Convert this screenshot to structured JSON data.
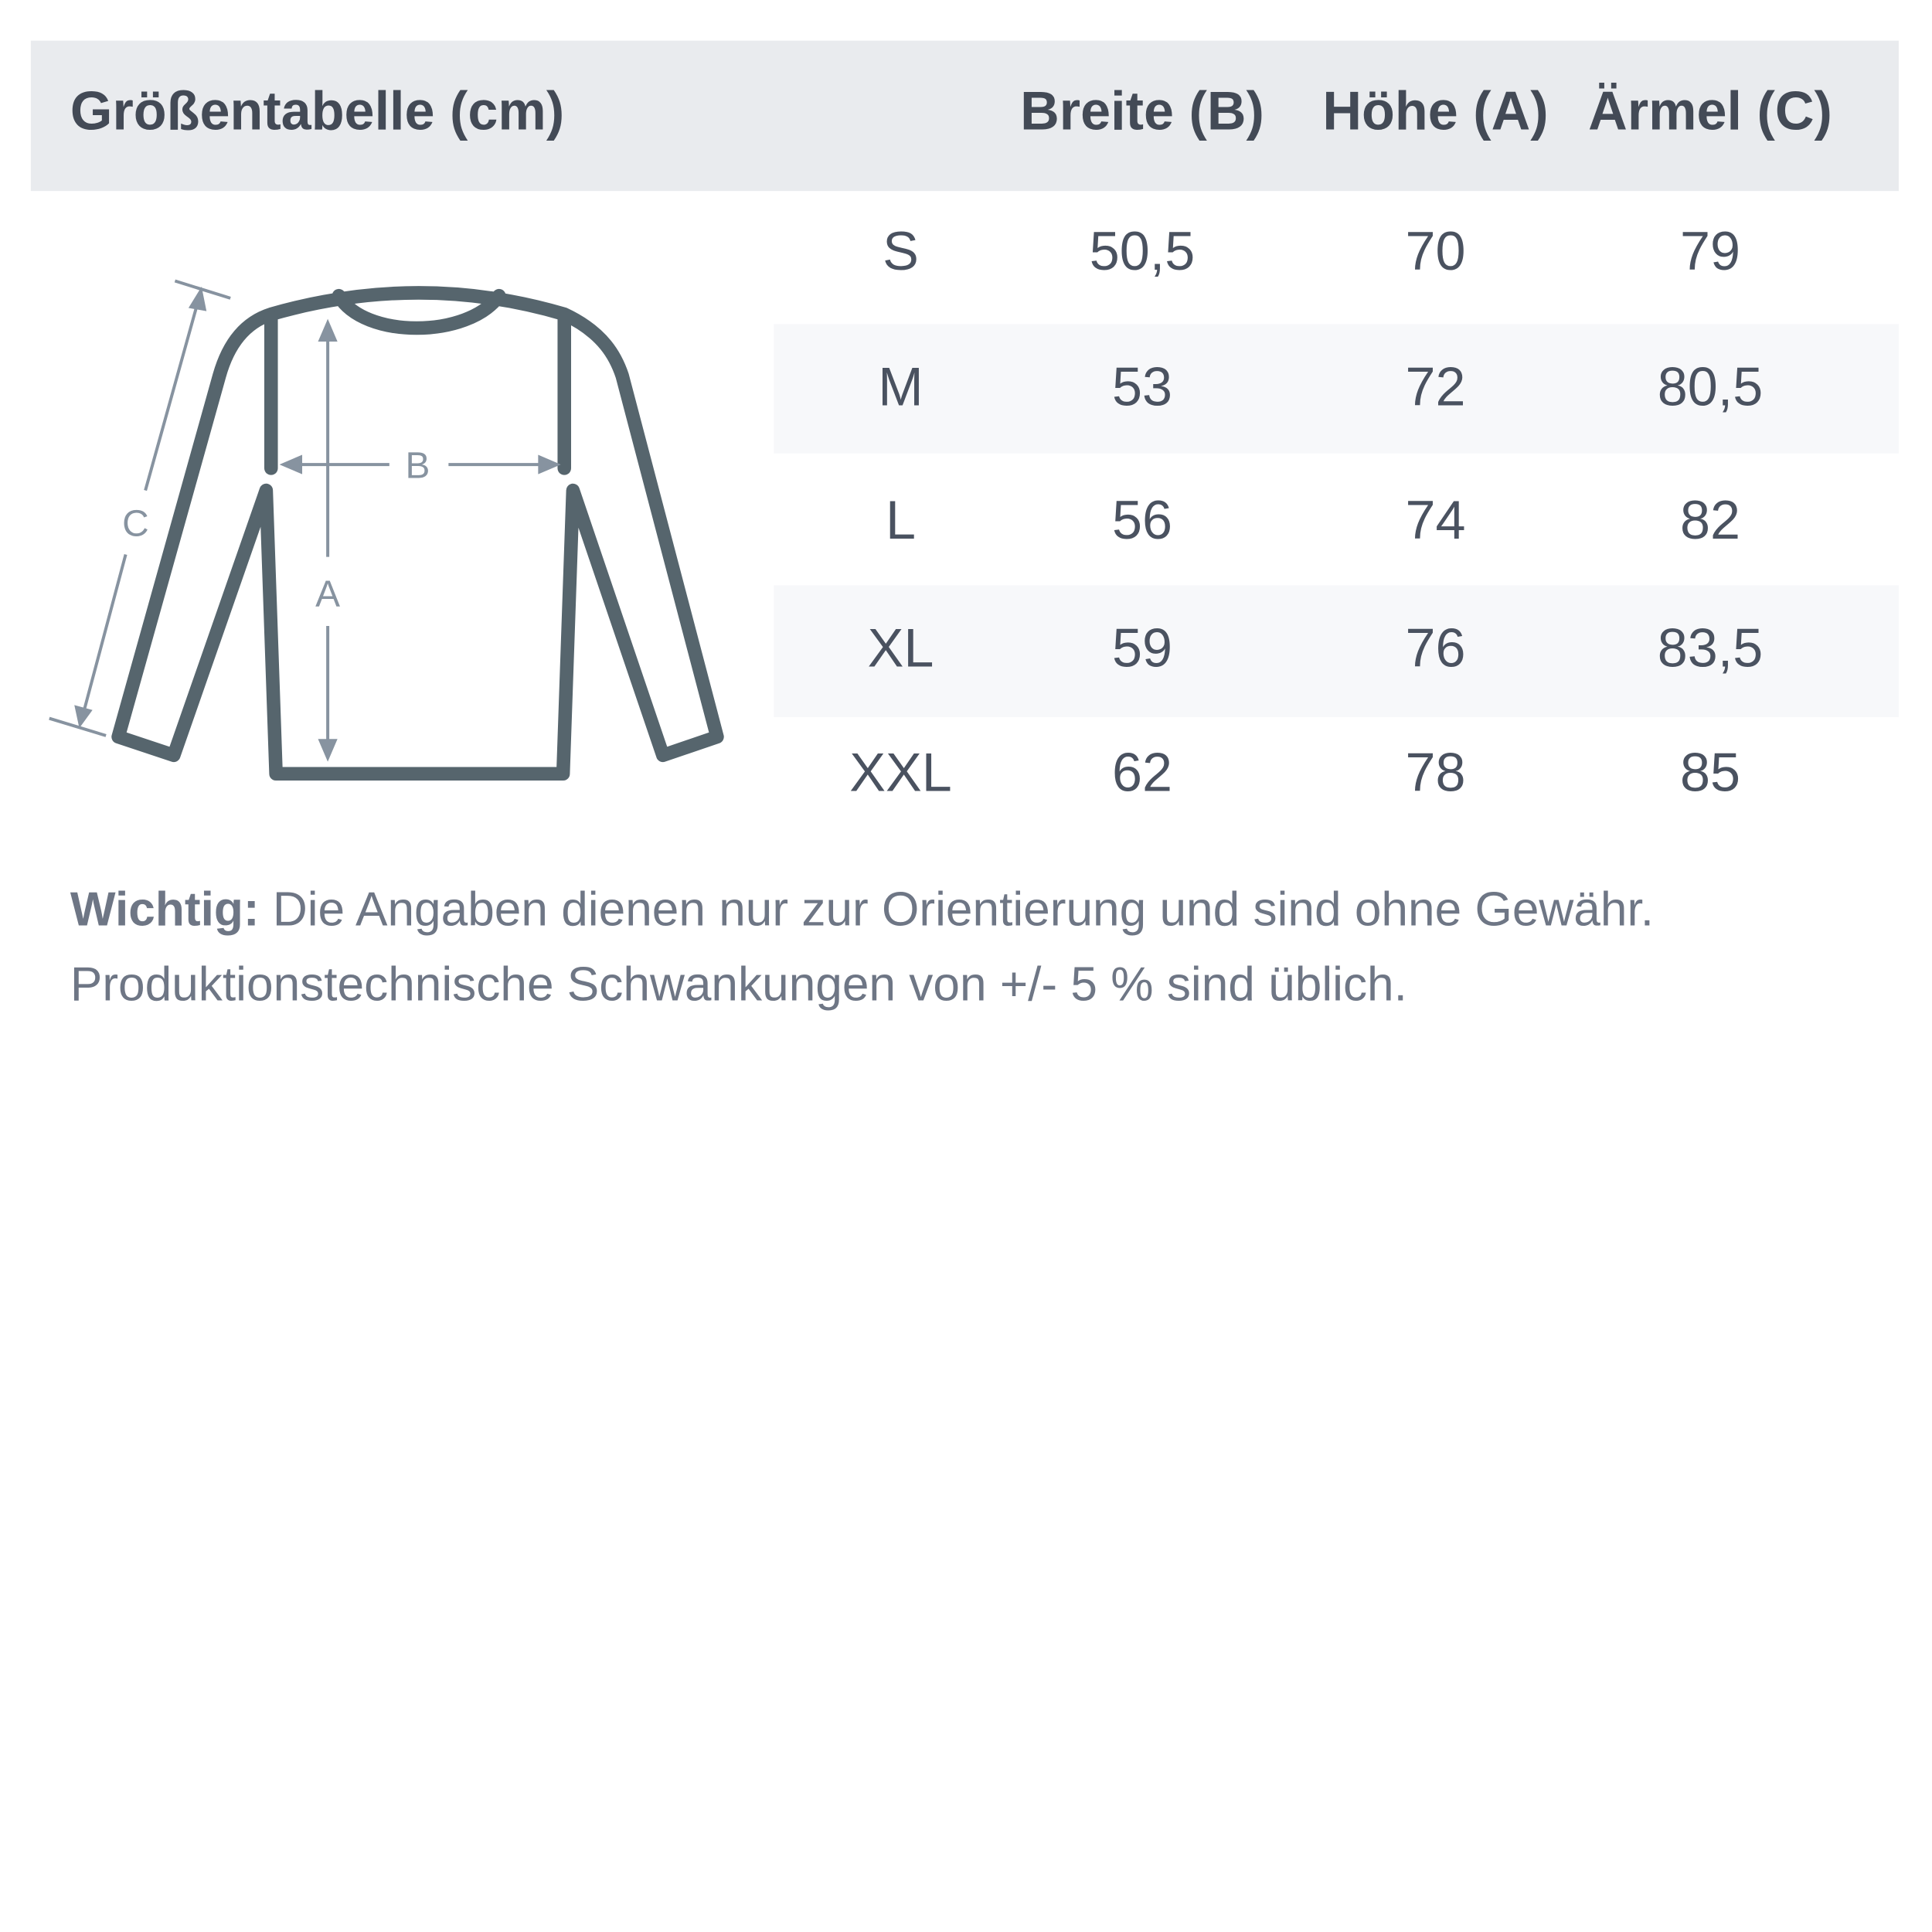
{
  "header": {
    "title": "Größentabelle (cm)",
    "columns": [
      "Breite (B)",
      "Höhe (A)",
      "Ärmel (C)"
    ]
  },
  "rows": [
    {
      "size": "S",
      "values": [
        "50,5",
        "70",
        "79"
      ]
    },
    {
      "size": "M",
      "values": [
        "53",
        "72",
        "80,5"
      ]
    },
    {
      "size": "L",
      "values": [
        "56",
        "74",
        "82"
      ]
    },
    {
      "size": "XL",
      "values": [
        "59",
        "76",
        "83,5"
      ]
    },
    {
      "size": "XXL",
      "values": [
        "62",
        "78",
        "85"
      ]
    }
  ],
  "diagram": {
    "label_a": "A",
    "label_b": "B",
    "label_c": "C",
    "icon": "sweater-measurement-icon"
  },
  "note": {
    "bold": "Wichtig:",
    "line1": " Die Angaben dienen nur zur Orientierung und sind ohne Gewähr.",
    "line2": "Produktionstechnische Schwankungen von +/- 5 % sind üblich."
  },
  "colors": {
    "header_bg": "#e9ebee",
    "stripe": "#f7f8fa",
    "outline": "#56656d",
    "measure": "#8793a0",
    "text": "#434a56"
  }
}
